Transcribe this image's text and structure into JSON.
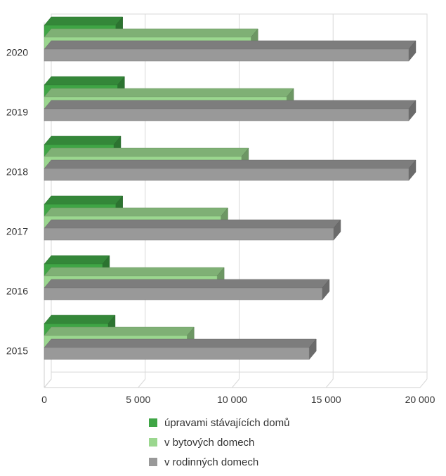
{
  "chart_data": {
    "type": "bar",
    "orientation": "horizontal",
    "style": "3d",
    "categories": [
      "2020",
      "2019",
      "2018",
      "2017",
      "2016",
      "2015"
    ],
    "series": [
      {
        "name": "úpravami stávajících domů",
        "color": "#3fa545",
        "values": [
          3800,
          3900,
          3700,
          3800,
          3100,
          3400
        ]
      },
      {
        "name": "v bytových domech",
        "color": "#9bd78f",
        "values": [
          11000,
          12900,
          10500,
          9400,
          9200,
          7600
        ]
      },
      {
        "name": "v rodinných domech",
        "color": "#999999",
        "values": [
          19400,
          19400,
          19400,
          15400,
          14800,
          14100
        ]
      }
    ],
    "xlim": [
      0,
      20000
    ],
    "xticks": [
      0,
      5000,
      10000,
      15000,
      20000
    ],
    "xtick_labels": [
      "0",
      "5 000",
      "10 000",
      "15 000",
      "20 000"
    ],
    "grid": true,
    "legend_position": "bottom"
  }
}
